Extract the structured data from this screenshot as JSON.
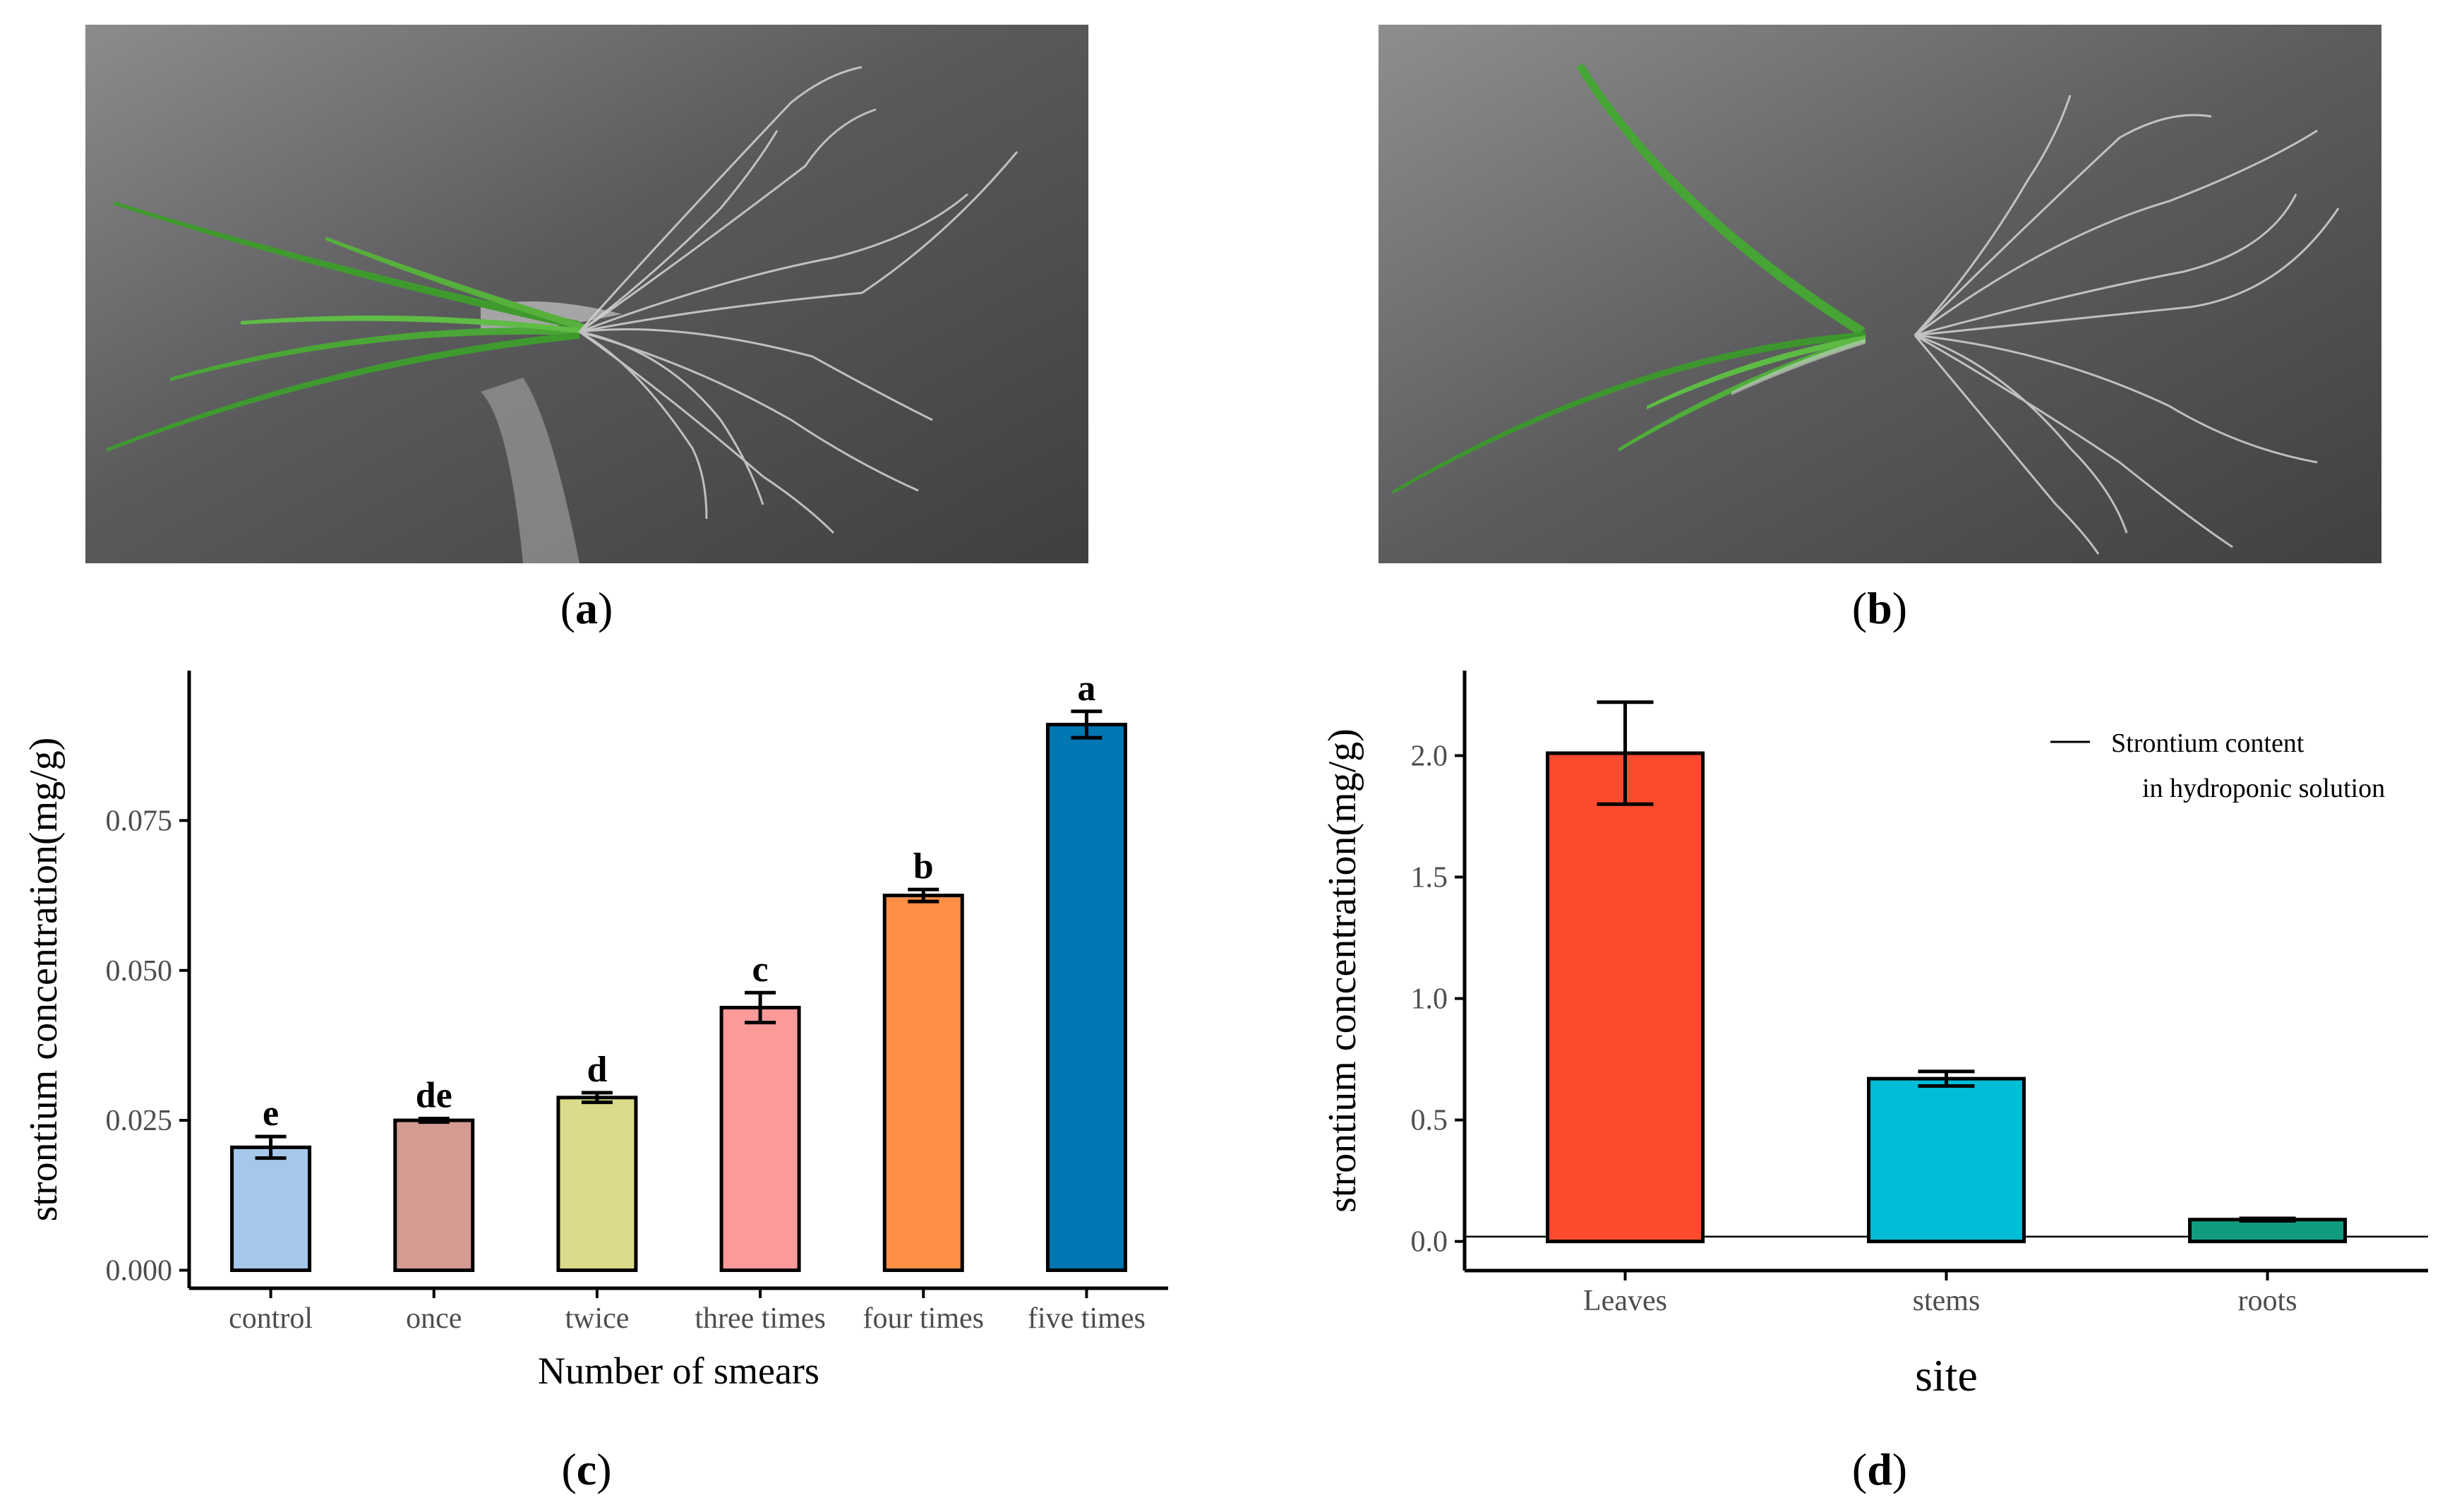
{
  "photos": [
    {
      "id": "a",
      "label_open": "(",
      "label_letter": "a",
      "label_close": ")"
    },
    {
      "id": "b",
      "label_open": "(",
      "label_letter": "b",
      "label_close": ")"
    }
  ],
  "chart_data": [
    {
      "type": "bar",
      "panel": "c",
      "label_open": "(",
      "label_letter": "c",
      "label_close": ")",
      "xlabel": "Number of smears",
      "ylabel": "strontium concentration(mg/g)",
      "categories": [
        "control",
        "once",
        "twice",
        "three times",
        "four times",
        "five times"
      ],
      "values": [
        0.0205,
        0.025,
        0.0288,
        0.0438,
        0.0625,
        0.091
      ],
      "errors": [
        0.0018,
        0.0003,
        0.0008,
        0.0025,
        0.001,
        0.0022
      ],
      "significance": [
        "e",
        "de",
        "d",
        "c",
        "b",
        "a"
      ],
      "colors": [
        "#a5c8ea",
        "#d49b92",
        "#dadb8b",
        "#fc9a9a",
        "#fd8f45",
        "#0076b3"
      ],
      "yticks": [
        0.0,
        0.025,
        0.05,
        0.075
      ],
      "ytick_labels": [
        "0.000",
        "0.025",
        "0.050",
        "0.075"
      ],
      "ylim": [
        -0.003,
        0.1
      ]
    },
    {
      "type": "bar",
      "panel": "d",
      "label_open": "(",
      "label_letter": "d",
      "label_close": ")",
      "xlabel": "site",
      "ylabel": "strontium concentration(mg/g)",
      "categories": [
        "Leaves",
        "stems",
        "roots"
      ],
      "values": [
        2.01,
        0.67,
        0.09
      ],
      "errors": [
        0.21,
        0.03,
        0.005
      ],
      "colors": [
        "#fe4a2e",
        "#00bcd6",
        "#119c7f"
      ],
      "yticks": [
        0.0,
        0.5,
        1.0,
        1.5,
        2.0
      ],
      "ytick_labels": [
        "0.0",
        "0.5",
        "1.0",
        "1.5",
        "2.0"
      ],
      "ylim": [
        -0.12,
        2.35
      ],
      "reference_line": 0.02,
      "legend_line1": "Strontium content",
      "legend_line2": "in hydroponic solution"
    }
  ]
}
